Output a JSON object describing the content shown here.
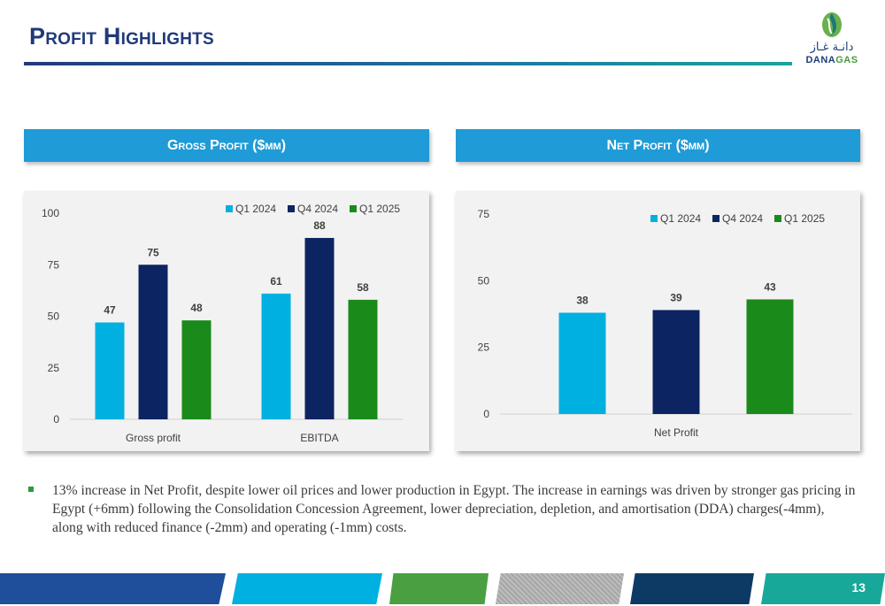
{
  "page": {
    "title": "Profit Highlights",
    "page_number": "13",
    "logo": {
      "arabic": "دانـة غـاز",
      "english_dana": "DANA",
      "english_gas": "GAS"
    }
  },
  "colors": {
    "title": "#1f3a7a",
    "header_bg": "#1f9bd7",
    "q1_2024": "#00b0e0",
    "q4_2024": "#0d2462",
    "q1_2025": "#1a8a1a"
  },
  "headers": {
    "gross": "Gross Profit ($mm)",
    "net": "Net Profit ($mm)"
  },
  "chart_data": [
    {
      "type": "bar",
      "categories": [
        "Gross profit",
        "EBITDA"
      ],
      "series": [
        {
          "name": "Q1 2024",
          "values": [
            47,
            61
          ],
          "color": "#00b0e0"
        },
        {
          "name": "Q4 2024",
          "values": [
            75,
            88
          ],
          "color": "#0d2462"
        },
        {
          "name": "Q1 2025",
          "values": [
            48,
            58
          ],
          "color": "#1a8a1a"
        }
      ],
      "yticks": [
        "0",
        "25",
        "50",
        "75",
        "100"
      ],
      "ylim": [
        0,
        100
      ],
      "legend": "top-right"
    },
    {
      "type": "bar",
      "categories": [
        "Net Profit"
      ],
      "series": [
        {
          "name": "Q1 2024",
          "values": [
            38
          ],
          "color": "#00b0e0"
        },
        {
          "name": "Q4 2024",
          "values": [
            39
          ],
          "color": "#0d2462"
        },
        {
          "name": "Q1 2025",
          "values": [
            43
          ],
          "color": "#1a8a1a"
        }
      ],
      "yticks": [
        "0",
        "25",
        "50",
        "75"
      ],
      "ylim": [
        0,
        75
      ],
      "legend": "top-right"
    }
  ],
  "bullet": "13% increase in Net Profit, despite lower oil prices and lower production in Egypt. The increase in earnings was driven by stronger gas pricing in Egypt (+6mm) following the Consolidation Concession Agreement, lower depreciation, depletion, and amortisation (DDA) charges(-4mm), along with reduced finance (-2mm) and operating (-1mm) costs.",
  "footer": {
    "colors": [
      "#1f4e9a",
      "#00b0e0",
      "#4aa040",
      "#a6a6a6",
      "#0d3a64",
      "#17a89a"
    ]
  }
}
